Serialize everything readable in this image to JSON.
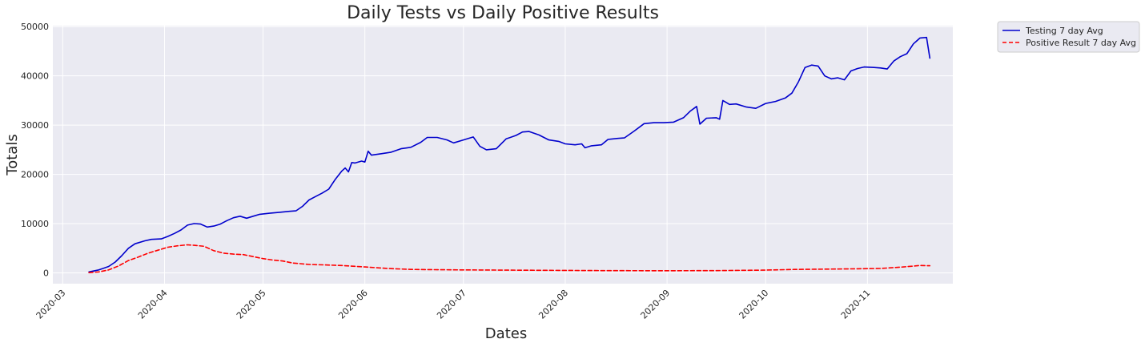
{
  "chart_data": {
    "type": "line",
    "title": "Daily Tests vs Daily Positive Results",
    "xlabel": "Dates",
    "ylabel": "Totals",
    "x_axis_type": "date",
    "xlim": [
      "2020-02-27",
      "2020-11-27"
    ],
    "ylim": [
      -2200,
      50200
    ],
    "y_ticks": [
      0,
      10000,
      20000,
      30000,
      40000,
      50000
    ],
    "x_ticks": [
      "2020-03-01",
      "2020-04-01",
      "2020-05-01",
      "2020-06-01",
      "2020-07-01",
      "2020-08-01",
      "2020-09-01",
      "2020-10-01",
      "2020-11-01"
    ],
    "x_tick_labels": [
      "2020-03",
      "2020-04",
      "2020-05",
      "2020-06",
      "2020-07",
      "2020-08",
      "2020-09",
      "2020-10",
      "2020-11"
    ],
    "grid": true,
    "legend_position": "outside-top-right",
    "background_color": "#eaeaf2",
    "series": [
      {
        "name": "Testing 7 day Avg",
        "color": "#0000cc",
        "style": "solid",
        "points": [
          [
            "2020-03-09",
            200
          ],
          [
            "2020-03-12",
            600
          ],
          [
            "2020-03-15",
            1300
          ],
          [
            "2020-03-17",
            2200
          ],
          [
            "2020-03-19",
            3500
          ],
          [
            "2020-03-21",
            5000
          ],
          [
            "2020-03-23",
            5900
          ],
          [
            "2020-03-26",
            6500
          ],
          [
            "2020-03-28",
            6800
          ],
          [
            "2020-03-31",
            6900
          ],
          [
            "2020-04-02",
            7400
          ],
          [
            "2020-04-04",
            8000
          ],
          [
            "2020-04-06",
            8700
          ],
          [
            "2020-04-08",
            9700
          ],
          [
            "2020-04-10",
            10000
          ],
          [
            "2020-04-12",
            9900
          ],
          [
            "2020-04-14",
            9300
          ],
          [
            "2020-04-16",
            9500
          ],
          [
            "2020-04-18",
            9900
          ],
          [
            "2020-04-20",
            10600
          ],
          [
            "2020-04-22",
            11200
          ],
          [
            "2020-04-24",
            11500
          ],
          [
            "2020-04-26",
            11100
          ],
          [
            "2020-04-28",
            11500
          ],
          [
            "2020-04-30",
            11900
          ],
          [
            "2020-05-03",
            12100
          ],
          [
            "2020-05-06",
            12300
          ],
          [
            "2020-05-09",
            12500
          ],
          [
            "2020-05-11",
            12600
          ],
          [
            "2020-05-13",
            13500
          ],
          [
            "2020-05-15",
            14800
          ],
          [
            "2020-05-17",
            15500
          ],
          [
            "2020-05-19",
            16200
          ],
          [
            "2020-05-21",
            17000
          ],
          [
            "2020-05-23",
            19000
          ],
          [
            "2020-05-25",
            20700
          ],
          [
            "2020-05-26",
            21300
          ],
          [
            "2020-05-27",
            20500
          ],
          [
            "2020-05-28",
            22400
          ],
          [
            "2020-05-29",
            22300
          ],
          [
            "2020-05-31",
            22700
          ],
          [
            "2020-06-01",
            22500
          ],
          [
            "2020-06-02",
            24700
          ],
          [
            "2020-06-03",
            23900
          ],
          [
            "2020-06-06",
            24200
          ],
          [
            "2020-06-09",
            24500
          ],
          [
            "2020-06-12",
            25200
          ],
          [
            "2020-06-15",
            25500
          ],
          [
            "2020-06-18",
            26500
          ],
          [
            "2020-06-20",
            27500
          ],
          [
            "2020-06-23",
            27500
          ],
          [
            "2020-06-26",
            27000
          ],
          [
            "2020-06-28",
            26400
          ],
          [
            "2020-07-01",
            27000
          ],
          [
            "2020-07-04",
            27600
          ],
          [
            "2020-07-06",
            25700
          ],
          [
            "2020-07-08",
            25000
          ],
          [
            "2020-07-11",
            25200
          ],
          [
            "2020-07-14",
            27200
          ],
          [
            "2020-07-17",
            27900
          ],
          [
            "2020-07-19",
            28600
          ],
          [
            "2020-07-21",
            28700
          ],
          [
            "2020-07-24",
            28000
          ],
          [
            "2020-07-27",
            27000
          ],
          [
            "2020-07-30",
            26700
          ],
          [
            "2020-08-01",
            26200
          ],
          [
            "2020-08-04",
            26000
          ],
          [
            "2020-08-06",
            26200
          ],
          [
            "2020-08-07",
            25400
          ],
          [
            "2020-08-09",
            25800
          ],
          [
            "2020-08-12",
            26000
          ],
          [
            "2020-08-14",
            27100
          ],
          [
            "2020-08-17",
            27300
          ],
          [
            "2020-08-19",
            27400
          ],
          [
            "2020-08-22",
            28800
          ],
          [
            "2020-08-25",
            30300
          ],
          [
            "2020-08-28",
            30500
          ],
          [
            "2020-08-31",
            30500
          ],
          [
            "2020-09-03",
            30600
          ],
          [
            "2020-09-06",
            31500
          ],
          [
            "2020-09-08",
            32800
          ],
          [
            "2020-09-10",
            33800
          ],
          [
            "2020-09-11",
            30200
          ],
          [
            "2020-09-13",
            31400
          ],
          [
            "2020-09-16",
            31500
          ],
          [
            "2020-09-17",
            31200
          ],
          [
            "2020-09-18",
            35000
          ],
          [
            "2020-09-20",
            34200
          ],
          [
            "2020-09-22",
            34300
          ],
          [
            "2020-09-25",
            33700
          ],
          [
            "2020-09-28",
            33400
          ],
          [
            "2020-10-01",
            34400
          ],
          [
            "2020-10-04",
            34800
          ],
          [
            "2020-10-07",
            35500
          ],
          [
            "2020-10-09",
            36500
          ],
          [
            "2020-10-11",
            38800
          ],
          [
            "2020-10-13",
            41700
          ],
          [
            "2020-10-15",
            42200
          ],
          [
            "2020-10-17",
            42000
          ],
          [
            "2020-10-19",
            40000
          ],
          [
            "2020-10-21",
            39400
          ],
          [
            "2020-10-23",
            39600
          ],
          [
            "2020-10-25",
            39200
          ],
          [
            "2020-10-27",
            41000
          ],
          [
            "2020-10-29",
            41500
          ],
          [
            "2020-10-31",
            41800
          ],
          [
            "2020-11-03",
            41700
          ],
          [
            "2020-11-05",
            41600
          ],
          [
            "2020-11-07",
            41400
          ],
          [
            "2020-11-09",
            43000
          ],
          [
            "2020-11-11",
            43900
          ],
          [
            "2020-11-13",
            44500
          ],
          [
            "2020-11-15",
            46500
          ],
          [
            "2020-11-17",
            47700
          ],
          [
            "2020-11-19",
            47800
          ],
          [
            "2020-11-20",
            43600
          ]
        ]
      },
      {
        "name": "Positive Result 7 day Avg",
        "color": "#ff0000",
        "style": "dashed",
        "points": [
          [
            "2020-03-09",
            50
          ],
          [
            "2020-03-12",
            200
          ],
          [
            "2020-03-15",
            600
          ],
          [
            "2020-03-18",
            1400
          ],
          [
            "2020-03-21",
            2500
          ],
          [
            "2020-03-24",
            3200
          ],
          [
            "2020-03-27",
            4000
          ],
          [
            "2020-03-30",
            4600
          ],
          [
            "2020-04-02",
            5200
          ],
          [
            "2020-04-05",
            5500
          ],
          [
            "2020-04-08",
            5700
          ],
          [
            "2020-04-10",
            5600
          ],
          [
            "2020-04-13",
            5400
          ],
          [
            "2020-04-16",
            4500
          ],
          [
            "2020-04-19",
            4000
          ],
          [
            "2020-04-22",
            3800
          ],
          [
            "2020-04-25",
            3700
          ],
          [
            "2020-04-28",
            3300
          ],
          [
            "2020-05-01",
            2900
          ],
          [
            "2020-05-04",
            2600
          ],
          [
            "2020-05-07",
            2400
          ],
          [
            "2020-05-10",
            2000
          ],
          [
            "2020-05-15",
            1700
          ],
          [
            "2020-05-20",
            1600
          ],
          [
            "2020-05-25",
            1500
          ],
          [
            "2020-06-01",
            1200
          ],
          [
            "2020-06-08",
            900
          ],
          [
            "2020-06-15",
            700
          ],
          [
            "2020-06-22",
            650
          ],
          [
            "2020-07-01",
            600
          ],
          [
            "2020-07-15",
            550
          ],
          [
            "2020-07-30",
            500
          ],
          [
            "2020-08-15",
            450
          ],
          [
            "2020-08-30",
            430
          ],
          [
            "2020-09-15",
            450
          ],
          [
            "2020-09-30",
            550
          ],
          [
            "2020-10-10",
            700
          ],
          [
            "2020-10-25",
            800
          ],
          [
            "2020-11-05",
            900
          ],
          [
            "2020-11-12",
            1200
          ],
          [
            "2020-11-17",
            1500
          ],
          [
            "2020-11-20",
            1450
          ]
        ]
      }
    ]
  }
}
